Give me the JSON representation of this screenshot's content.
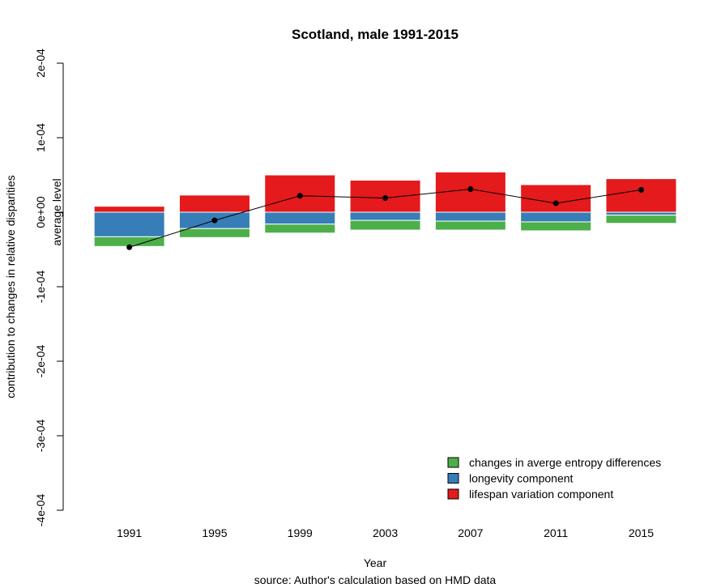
{
  "chart_data": {
    "type": "bar",
    "stacked": true,
    "title": "Scotland, male 1991-2015",
    "xlabel": "Year",
    "caption": "source: Author's calculation based on HMD data",
    "ylabel": "contribution to changes in relative disparities",
    "ylabel_inner": "average level",
    "ylim": [
      -0.0004,
      0.0002
    ],
    "yticks": [
      {
        "value": -0.0004,
        "label": "-4e-04"
      },
      {
        "value": -0.0003,
        "label": "-3e-04"
      },
      {
        "value": -0.0002,
        "label": "-2e-04"
      },
      {
        "value": -0.0001,
        "label": "-1e-04"
      },
      {
        "value": 0,
        "label": "0e+00"
      },
      {
        "value": 0.0001,
        "label": "1e-04"
      },
      {
        "value": 0.0002,
        "label": "2e-04"
      }
    ],
    "categories": [
      "1991",
      "1995",
      "1999",
      "2003",
      "2007",
      "2011",
      "2015"
    ],
    "series": [
      {
        "name": "lifespan variation component",
        "color": "#e41a1c",
        "values": [
          8e-06,
          2.3e-05,
          5e-05,
          4.3e-05,
          5.4e-05,
          3.7e-05,
          4.5e-05
        ]
      },
      {
        "name": "longevity component",
        "color": "#377eb8",
        "values": [
          -3.3e-05,
          -2.2e-05,
          -1.6e-05,
          -1.1e-05,
          -1.2e-05,
          -1.3e-05,
          -4e-06
        ]
      },
      {
        "name": "changes in averge entropy differences",
        "color": "#4daf4a",
        "values": [
          -1.3e-05,
          -1.2e-05,
          -1.2e-05,
          -1.3e-05,
          -1.2e-05,
          -1.2e-05,
          -1.1e-05
        ]
      }
    ],
    "line": {
      "values": [
        -4.7e-05,
        -1.1e-05,
        2.2e-05,
        1.9e-05,
        3.1e-05,
        1.2e-05,
        3e-05
      ]
    },
    "legend": {
      "position": "bottom-right",
      "entries": [
        {
          "label": "changes in averge entropy differences",
          "color": "#4daf4a"
        },
        {
          "label": "longevity component",
          "color": "#377eb8"
        },
        {
          "label": "lifespan variation component",
          "color": "#e41a1c"
        }
      ]
    }
  }
}
